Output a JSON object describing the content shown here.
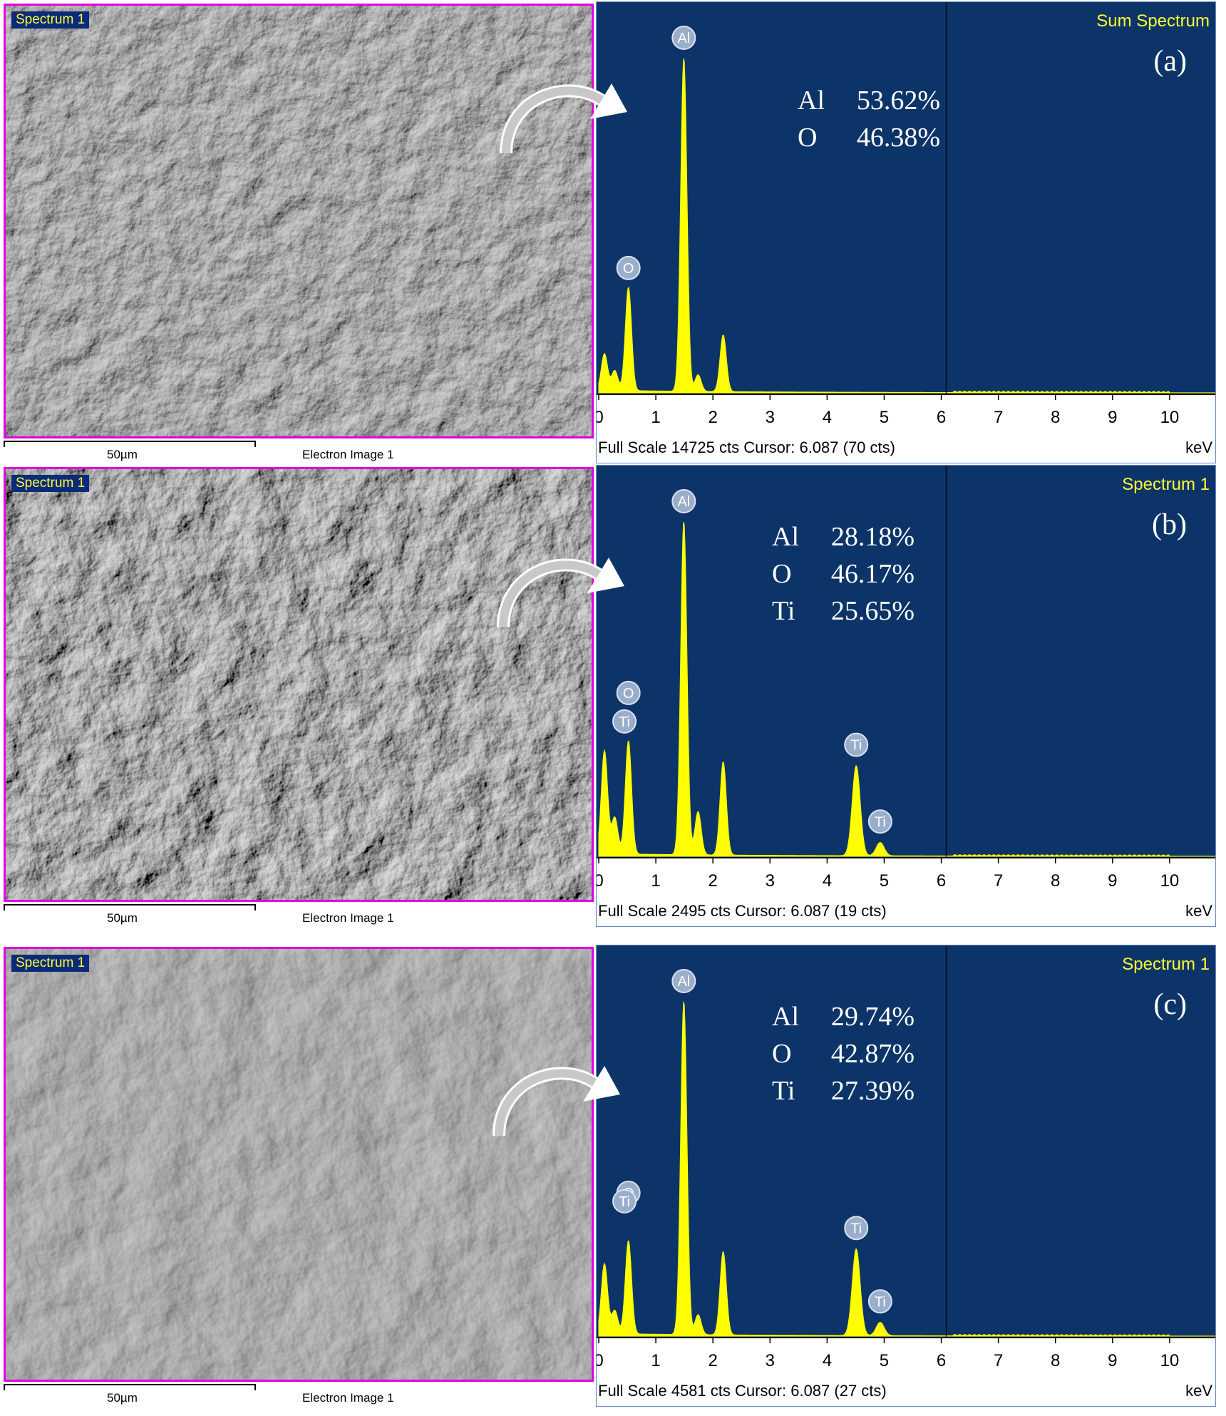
{
  "panels": [
    {
      "sem": {
        "tag": "Spectrum 1",
        "scale_label": "50µm",
        "image_label": "Electron Image 1"
      },
      "spectrum": {
        "title": "Sum Spectrum",
        "panel_label": "(a)",
        "footer": "Full Scale 14725 cts Cursor: 6.087  (70 cts)",
        "unit": "keV"
      },
      "composition": [
        {
          "element": "Al",
          "value": "53.62%"
        },
        {
          "element": "O",
          "value": "46.38%"
        }
      ]
    },
    {
      "sem": {
        "tag": "Spectrum 1",
        "scale_label": "50µm",
        "image_label": "Electron Image 1"
      },
      "spectrum": {
        "title": "Spectrum 1",
        "panel_label": "(b)",
        "footer": "Full Scale 2495 cts Cursor: 6.087  (19 cts)",
        "unit": "keV"
      },
      "composition": [
        {
          "element": "Al",
          "value": "28.18%"
        },
        {
          "element": "O",
          "value": "46.17%"
        },
        {
          "element": "Ti",
          "value": "25.65%"
        }
      ]
    },
    {
      "sem": {
        "tag": "Spectrum 1",
        "scale_label": "50µm",
        "image_label": "Electron Image 1"
      },
      "spectrum": {
        "title": "Spectrum 1",
        "panel_label": "(c)",
        "footer": "Full Scale 4581 cts Cursor: 6.087  (27 cts)",
        "unit": "keV"
      },
      "composition": [
        {
          "element": "Al",
          "value": "29.74%"
        },
        {
          "element": "O",
          "value": "42.87%"
        },
        {
          "element": "Ti",
          "value": "27.39%"
        }
      ]
    }
  ],
  "colors": {
    "spectrum_bg": "#0d3468",
    "peak": "#ffff00",
    "label_text": "#ffff33",
    "sem_border": "#e000e0"
  },
  "chart_data": [
    {
      "type": "area",
      "title": "Sum Spectrum",
      "xlabel": "keV",
      "x_ticks": [
        0,
        1,
        2,
        3,
        4,
        5,
        6,
        7,
        8,
        9,
        10
      ],
      "xlim": [
        0,
        10.8
      ],
      "cursor_kev": 6.087,
      "full_scale_cts": 14725,
      "peaks": [
        {
          "label": "",
          "kev": 0.1,
          "rel": 0.11
        },
        {
          "label": "",
          "kev": 0.28,
          "rel": 0.06
        },
        {
          "label": "O",
          "kev": 0.52,
          "rel": 0.31
        },
        {
          "label": "Al",
          "kev": 1.49,
          "rel": 1.0
        },
        {
          "label": "",
          "kev": 1.74,
          "rel": 0.05
        },
        {
          "label": "",
          "kev": 2.18,
          "rel": 0.17
        }
      ]
    },
    {
      "type": "area",
      "title": "Spectrum 1",
      "xlabel": "keV",
      "x_ticks": [
        0,
        1,
        2,
        3,
        4,
        5,
        6,
        7,
        8,
        9,
        10
      ],
      "xlim": [
        0,
        10.8
      ],
      "cursor_kev": 6.087,
      "full_scale_cts": 2495,
      "peaks": [
        {
          "label": "",
          "kev": 0.1,
          "rel": 0.31
        },
        {
          "label": "",
          "kev": 0.28,
          "rel": 0.11
        },
        {
          "label": "O",
          "kev": 0.52,
          "rel": 0.34
        },
        {
          "label": "Ti",
          "kev": 0.45,
          "rel": 0.0
        },
        {
          "label": "Al",
          "kev": 1.49,
          "rel": 1.0
        },
        {
          "label": "",
          "kev": 1.74,
          "rel": 0.13
        },
        {
          "label": "",
          "kev": 2.18,
          "rel": 0.28
        },
        {
          "label": "Ti",
          "kev": 4.51,
          "rel": 0.27
        },
        {
          "label": "Ti",
          "kev": 4.93,
          "rel": 0.04
        }
      ]
    },
    {
      "type": "area",
      "title": "Spectrum 1",
      "xlabel": "keV",
      "x_ticks": [
        0,
        1,
        2,
        3,
        4,
        5,
        6,
        7,
        8,
        9,
        10
      ],
      "xlim": [
        0,
        10.8
      ],
      "cursor_kev": 6.087,
      "full_scale_cts": 4581,
      "peaks": [
        {
          "label": "",
          "kev": 0.1,
          "rel": 0.21
        },
        {
          "label": "",
          "kev": 0.28,
          "rel": 0.07
        },
        {
          "label": "O",
          "kev": 0.52,
          "rel": 0.28
        },
        {
          "label": "Ti",
          "kev": 0.45,
          "rel": 0.0
        },
        {
          "label": "Al",
          "kev": 1.49,
          "rel": 1.0
        },
        {
          "label": "",
          "kev": 1.74,
          "rel": 0.06
        },
        {
          "label": "",
          "kev": 2.18,
          "rel": 0.25
        },
        {
          "label": "Ti",
          "kev": 4.51,
          "rel": 0.26
        },
        {
          "label": "Ti",
          "kev": 4.93,
          "rel": 0.04
        }
      ]
    }
  ]
}
